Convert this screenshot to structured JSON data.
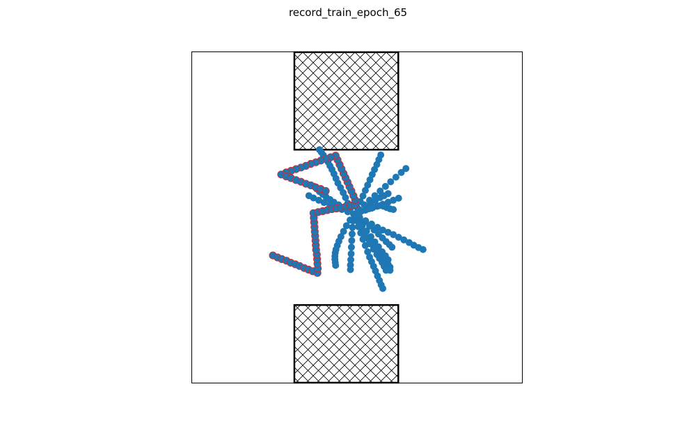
{
  "chart_data": {
    "type": "scatter",
    "title": "record_train_epoch_65",
    "xlabel": "",
    "ylabel": "",
    "xlim": [
      0,
      1
    ],
    "ylim": [
      0,
      1
    ],
    "grid": false,
    "legend": "none",
    "colors": {
      "points": "#1f77b4",
      "highlight_edge": "#d62728",
      "obstacle_edge": "#000000",
      "axes_edge": "#000000"
    },
    "obstacles": [
      {
        "x0": 0.31,
        "x1": 0.625,
        "y0": 0.705,
        "y1": 1.0
      },
      {
        "x0": 0.31,
        "x1": 0.625,
        "y0": 0.0,
        "y1": 0.235
      }
    ],
    "series": [
      {
        "highlight": false,
        "points": [
          [
            0.49,
            0.51
          ],
          [
            0.48,
            0.528
          ],
          [
            0.472,
            0.543
          ],
          [
            0.465,
            0.56
          ],
          [
            0.458,
            0.575
          ],
          [
            0.45,
            0.59
          ],
          [
            0.442,
            0.604
          ],
          [
            0.436,
            0.618
          ],
          [
            0.43,
            0.632
          ],
          [
            0.424,
            0.645
          ],
          [
            0.418,
            0.656
          ],
          [
            0.412,
            0.668
          ],
          [
            0.405,
            0.678
          ],
          [
            0.398,
            0.688
          ],
          [
            0.392,
            0.697
          ],
          [
            0.386,
            0.705
          ]
        ]
      },
      {
        "highlight": false,
        "points": [
          [
            0.49,
            0.51
          ],
          [
            0.5,
            0.53
          ],
          [
            0.51,
            0.548
          ],
          [
            0.518,
            0.565
          ],
          [
            0.525,
            0.582
          ],
          [
            0.532,
            0.598
          ],
          [
            0.539,
            0.614
          ],
          [
            0.546,
            0.63
          ],
          [
            0.553,
            0.645
          ],
          [
            0.56,
            0.66
          ],
          [
            0.566,
            0.675
          ],
          [
            0.572,
            0.689
          ]
        ]
      },
      {
        "highlight": false,
        "points": [
          [
            0.49,
            0.51
          ],
          [
            0.506,
            0.524
          ],
          [
            0.522,
            0.538
          ],
          [
            0.538,
            0.552
          ],
          [
            0.554,
            0.566
          ],
          [
            0.57,
            0.58
          ],
          [
            0.586,
            0.594
          ],
          [
            0.602,
            0.608
          ],
          [
            0.618,
            0.622
          ],
          [
            0.634,
            0.636
          ],
          [
            0.648,
            0.648
          ]
        ]
      },
      {
        "highlight": false,
        "points": [
          [
            0.49,
            0.51
          ],
          [
            0.508,
            0.516
          ],
          [
            0.526,
            0.522
          ],
          [
            0.544,
            0.528
          ],
          [
            0.562,
            0.534
          ],
          [
            0.578,
            0.54
          ],
          [
            0.594,
            0.546
          ],
          [
            0.61,
            0.552
          ],
          [
            0.626,
            0.558
          ]
        ]
      },
      {
        "highlight": false,
        "points": [
          [
            0.49,
            0.51
          ],
          [
            0.508,
            0.5
          ],
          [
            0.526,
            0.49
          ],
          [
            0.544,
            0.48
          ],
          [
            0.562,
            0.47
          ],
          [
            0.578,
            0.462
          ],
          [
            0.594,
            0.455
          ],
          [
            0.61,
            0.448
          ],
          [
            0.626,
            0.44
          ],
          [
            0.642,
            0.432
          ],
          [
            0.658,
            0.424
          ],
          [
            0.672,
            0.416
          ],
          [
            0.686,
            0.409
          ],
          [
            0.7,
            0.403
          ]
        ]
      },
      {
        "highlight": false,
        "points": [
          [
            0.49,
            0.51
          ],
          [
            0.503,
            0.493
          ],
          [
            0.516,
            0.476
          ],
          [
            0.529,
            0.459
          ],
          [
            0.542,
            0.442
          ],
          [
            0.554,
            0.426
          ],
          [
            0.565,
            0.411
          ],
          [
            0.576,
            0.396
          ],
          [
            0.586,
            0.384
          ],
          [
            0.594,
            0.372
          ]
        ]
      },
      {
        "highlight": false,
        "points": [
          [
            0.49,
            0.51
          ],
          [
            0.5,
            0.492
          ],
          [
            0.51,
            0.474
          ],
          [
            0.52,
            0.456
          ],
          [
            0.53,
            0.438
          ],
          [
            0.54,
            0.42
          ],
          [
            0.55,
            0.404
          ],
          [
            0.56,
            0.388
          ],
          [
            0.568,
            0.376
          ],
          [
            0.576,
            0.364
          ],
          [
            0.582,
            0.352
          ],
          [
            0.588,
            0.34
          ]
        ]
      },
      {
        "highlight": false,
        "points": [
          [
            0.49,
            0.51
          ],
          [
            0.497,
            0.491
          ],
          [
            0.504,
            0.472
          ],
          [
            0.511,
            0.453
          ],
          [
            0.518,
            0.434
          ],
          [
            0.525,
            0.415
          ],
          [
            0.532,
            0.396
          ],
          [
            0.538,
            0.38
          ],
          [
            0.544,
            0.366
          ],
          [
            0.55,
            0.352
          ],
          [
            0.556,
            0.338
          ],
          [
            0.562,
            0.323
          ],
          [
            0.568,
            0.309
          ],
          [
            0.573,
            0.296
          ],
          [
            0.578,
            0.285
          ]
        ]
      },
      {
        "highlight": false,
        "points": [
          [
            0.49,
            0.51
          ],
          [
            0.488,
            0.49
          ],
          [
            0.486,
            0.47
          ],
          [
            0.485,
            0.45
          ],
          [
            0.484,
            0.43
          ],
          [
            0.483,
            0.41
          ],
          [
            0.482,
            0.39
          ],
          [
            0.481,
            0.372
          ],
          [
            0.48,
            0.356
          ],
          [
            0.48,
            0.342
          ]
        ]
      },
      {
        "highlight": false,
        "points": [
          [
            0.49,
            0.51
          ],
          [
            0.479,
            0.492
          ],
          [
            0.468,
            0.475
          ],
          [
            0.459,
            0.458
          ],
          [
            0.451,
            0.442
          ],
          [
            0.445,
            0.428
          ],
          [
            0.44,
            0.415
          ],
          [
            0.436,
            0.403
          ],
          [
            0.434,
            0.393
          ],
          [
            0.433,
            0.383
          ],
          [
            0.433,
            0.373
          ],
          [
            0.434,
            0.364
          ],
          [
            0.435,
            0.355
          ]
        ]
      },
      {
        "highlight": false,
        "points": [
          [
            0.49,
            0.51
          ],
          [
            0.472,
            0.517
          ],
          [
            0.454,
            0.524
          ],
          [
            0.436,
            0.531
          ],
          [
            0.418,
            0.538
          ],
          [
            0.4,
            0.545
          ],
          [
            0.384,
            0.552
          ],
          [
            0.368,
            0.559
          ],
          [
            0.354,
            0.566
          ]
        ]
      },
      {
        "highlight": false,
        "points": [
          [
            0.49,
            0.51
          ],
          [
            0.474,
            0.52
          ],
          [
            0.458,
            0.53
          ],
          [
            0.444,
            0.538
          ],
          [
            0.43,
            0.546
          ],
          [
            0.418,
            0.554
          ],
          [
            0.406,
            0.562
          ],
          [
            0.396,
            0.57
          ],
          [
            0.386,
            0.578
          ],
          [
            0.378,
            0.586
          ],
          [
            0.37,
            0.594
          ]
        ]
      },
      {
        "highlight": false,
        "points": [
          [
            0.49,
            0.51
          ],
          [
            0.508,
            0.522
          ],
          [
            0.526,
            0.534
          ],
          [
            0.542,
            0.544
          ],
          [
            0.556,
            0.552
          ],
          [
            0.57,
            0.56
          ],
          [
            0.582,
            0.566
          ],
          [
            0.594,
            0.572
          ]
        ]
      },
      {
        "highlight": false,
        "points": [
          [
            0.49,
            0.51
          ],
          [
            0.506,
            0.498
          ],
          [
            0.522,
            0.486
          ],
          [
            0.538,
            0.474
          ],
          [
            0.552,
            0.462
          ],
          [
            0.565,
            0.45
          ],
          [
            0.577,
            0.438
          ],
          [
            0.588,
            0.427
          ],
          [
            0.598,
            0.418
          ],
          [
            0.606,
            0.41
          ]
        ]
      },
      {
        "highlight": false,
        "points": [
          [
            0.49,
            0.51
          ],
          [
            0.498,
            0.496
          ],
          [
            0.506,
            0.482
          ],
          [
            0.514,
            0.468
          ],
          [
            0.522,
            0.454
          ],
          [
            0.53,
            0.44
          ],
          [
            0.538,
            0.428
          ],
          [
            0.546,
            0.418
          ],
          [
            0.554,
            0.408
          ],
          [
            0.562,
            0.398
          ],
          [
            0.57,
            0.39
          ],
          [
            0.578,
            0.382
          ],
          [
            0.585,
            0.374
          ],
          [
            0.59,
            0.366
          ],
          [
            0.594,
            0.358
          ],
          [
            0.6,
            0.35
          ],
          [
            0.6,
            0.34
          ]
        ]
      },
      {
        "highlight": false,
        "points": [
          [
            0.49,
            0.51
          ],
          [
            0.5,
            0.514
          ],
          [
            0.512,
            0.518
          ],
          [
            0.524,
            0.522
          ],
          [
            0.536,
            0.526
          ],
          [
            0.548,
            0.53
          ],
          [
            0.56,
            0.534
          ],
          [
            0.57,
            0.536
          ],
          [
            0.58,
            0.534
          ],
          [
            0.59,
            0.53
          ],
          [
            0.6,
            0.526
          ],
          [
            0.61,
            0.524
          ]
        ]
      },
      {
        "highlight": true,
        "points": [
          [
            0.245,
            0.385
          ],
          [
            0.259,
            0.379
          ],
          [
            0.272,
            0.374
          ],
          [
            0.286,
            0.369
          ],
          [
            0.299,
            0.363
          ],
          [
            0.313,
            0.358
          ],
          [
            0.326,
            0.353
          ],
          [
            0.34,
            0.347
          ],
          [
            0.353,
            0.342
          ],
          [
            0.366,
            0.337
          ],
          [
            0.38,
            0.332
          ],
          [
            0.381,
            0.346
          ],
          [
            0.38,
            0.36
          ],
          [
            0.379,
            0.374
          ],
          [
            0.378,
            0.388
          ],
          [
            0.376,
            0.402
          ],
          [
            0.375,
            0.416
          ],
          [
            0.374,
            0.43
          ],
          [
            0.373,
            0.444
          ],
          [
            0.372,
            0.457
          ],
          [
            0.371,
            0.471
          ],
          [
            0.37,
            0.485
          ],
          [
            0.369,
            0.499
          ],
          [
            0.368,
            0.513
          ],
          [
            0.382,
            0.516
          ],
          [
            0.396,
            0.519
          ],
          [
            0.41,
            0.522
          ],
          [
            0.424,
            0.525
          ],
          [
            0.438,
            0.527
          ],
          [
            0.452,
            0.53
          ],
          [
            0.466,
            0.533
          ],
          [
            0.48,
            0.536
          ],
          [
            0.494,
            0.539
          ],
          [
            0.494,
            0.553
          ],
          [
            0.489,
            0.566
          ],
          [
            0.483,
            0.58
          ],
          [
            0.477,
            0.593
          ],
          [
            0.471,
            0.607
          ],
          [
            0.465,
            0.62
          ],
          [
            0.459,
            0.633
          ],
          [
            0.453,
            0.647
          ],
          [
            0.447,
            0.66
          ],
          [
            0.441,
            0.674
          ],
          [
            0.435,
            0.687
          ],
          [
            0.42,
            0.682
          ],
          [
            0.405,
            0.677
          ],
          [
            0.39,
            0.672
          ],
          [
            0.375,
            0.667
          ],
          [
            0.36,
            0.662
          ],
          [
            0.345,
            0.656
          ],
          [
            0.33,
            0.651
          ],
          [
            0.315,
            0.646
          ],
          [
            0.3,
            0.641
          ],
          [
            0.285,
            0.636
          ],
          [
            0.27,
            0.63
          ],
          [
            0.285,
            0.624
          ],
          [
            0.3,
            0.619
          ],
          [
            0.315,
            0.613
          ],
          [
            0.33,
            0.608
          ],
          [
            0.345,
            0.602
          ],
          [
            0.36,
            0.597
          ],
          [
            0.375,
            0.591
          ],
          [
            0.39,
            0.586
          ],
          [
            0.405,
            0.58
          ]
        ]
      }
    ]
  }
}
